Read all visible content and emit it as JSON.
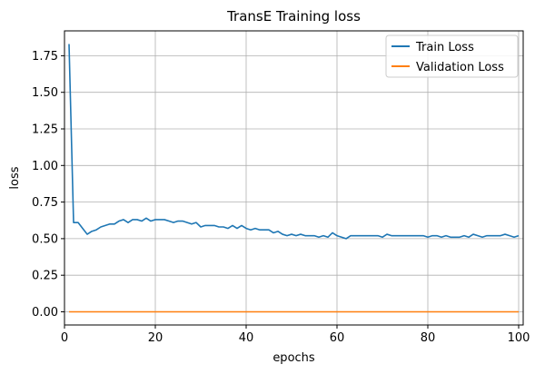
{
  "chart_data": {
    "type": "line",
    "title": "TransE Training loss",
    "xlabel": "epochs",
    "ylabel": "loss",
    "xlim": [
      0,
      101
    ],
    "ylim": [
      -0.09,
      1.92
    ],
    "x_ticks": [
      0,
      20,
      40,
      60,
      80,
      100
    ],
    "y_ticks": [
      0.0,
      0.25,
      0.5,
      0.75,
      1.0,
      1.25,
      1.5,
      1.75
    ],
    "x_tick_labels": [
      "0",
      "20",
      "40",
      "60",
      "80",
      "100"
    ],
    "y_tick_labels": [
      "0.00",
      "0.25",
      "0.50",
      "0.75",
      "1.00",
      "1.25",
      "1.50",
      "1.75"
    ],
    "grid": true,
    "legend_position": "top-right",
    "series": [
      {
        "name": "Train Loss",
        "color": "#1f77b4",
        "x": [
          1,
          2,
          3,
          4,
          5,
          6,
          7,
          8,
          9,
          10,
          11,
          12,
          13,
          14,
          15,
          16,
          17,
          18,
          19,
          20,
          21,
          22,
          23,
          24,
          25,
          26,
          27,
          28,
          29,
          30,
          31,
          32,
          33,
          34,
          35,
          36,
          37,
          38,
          39,
          40,
          41,
          42,
          43,
          44,
          45,
          46,
          47,
          48,
          49,
          50,
          51,
          52,
          53,
          54,
          55,
          56,
          57,
          58,
          59,
          60,
          61,
          62,
          63,
          64,
          65,
          66,
          67,
          68,
          69,
          70,
          71,
          72,
          73,
          74,
          75,
          76,
          77,
          78,
          79,
          80,
          81,
          82,
          83,
          84,
          85,
          86,
          87,
          88,
          89,
          90,
          91,
          92,
          93,
          94,
          95,
          96,
          97,
          98,
          99,
          100
        ],
        "values": [
          1.83,
          0.61,
          0.61,
          0.57,
          0.53,
          0.55,
          0.56,
          0.58,
          0.59,
          0.6,
          0.6,
          0.62,
          0.63,
          0.61,
          0.63,
          0.63,
          0.62,
          0.64,
          0.62,
          0.63,
          0.63,
          0.63,
          0.62,
          0.61,
          0.62,
          0.62,
          0.61,
          0.6,
          0.61,
          0.58,
          0.59,
          0.59,
          0.59,
          0.58,
          0.58,
          0.57,
          0.59,
          0.57,
          0.59,
          0.57,
          0.56,
          0.57,
          0.56,
          0.56,
          0.56,
          0.54,
          0.55,
          0.53,
          0.52,
          0.53,
          0.52,
          0.53,
          0.52,
          0.52,
          0.52,
          0.51,
          0.52,
          0.51,
          0.54,
          0.52,
          0.51,
          0.5,
          0.52,
          0.52,
          0.52,
          0.52,
          0.52,
          0.52,
          0.52,
          0.51,
          0.53,
          0.52,
          0.52,
          0.52,
          0.52,
          0.52,
          0.52,
          0.52,
          0.52,
          0.51,
          0.52,
          0.52,
          0.51,
          0.52,
          0.51,
          0.51,
          0.51,
          0.52,
          0.51,
          0.53,
          0.52,
          0.51,
          0.52,
          0.52,
          0.52,
          0.52,
          0.53,
          0.52,
          0.51,
          0.52
        ]
      },
      {
        "name": "Validation Loss",
        "color": "#ff7f0e",
        "x": [
          1,
          100
        ],
        "values": [
          0.0,
          0.0
        ]
      }
    ]
  }
}
